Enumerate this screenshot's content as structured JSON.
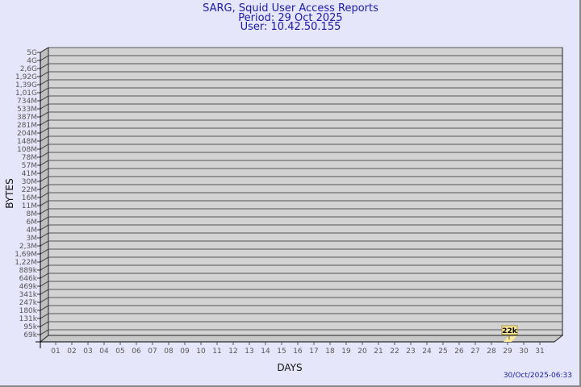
{
  "header": {
    "title": "SARG, Squid User Access Reports",
    "period": "Period: 29 Oct 2025",
    "user": "User: 10.42.50.155"
  },
  "footer": {
    "timestamp": "30/Oct/2025-06:33"
  },
  "chart_data": {
    "type": "bar",
    "xlabel": "DAYS",
    "ylabel": "BYTES",
    "y_scale": "log",
    "y_tick_labels": [
      "5G",
      "4G",
      "2,6G",
      "1,92G",
      "1,39G",
      "1,01G",
      "734M",
      "533M",
      "387M",
      "281M",
      "204M",
      "148M",
      "108M",
      "78M",
      "57M",
      "41M",
      "30M",
      "22M",
      "16M",
      "11M",
      "8M",
      "6M",
      "4M",
      "3M",
      "2,3M",
      "1,69M",
      "1,22M",
      "889k",
      "646k",
      "469k",
      "341k",
      "247k",
      "180k",
      "131k",
      "95k",
      "69k"
    ],
    "categories": [
      "01",
      "02",
      "03",
      "04",
      "05",
      "06",
      "07",
      "08",
      "09",
      "10",
      "11",
      "12",
      "13",
      "14",
      "15",
      "16",
      "17",
      "18",
      "19",
      "20",
      "21",
      "22",
      "23",
      "24",
      "25",
      "26",
      "27",
      "28",
      "29",
      "30",
      "31"
    ],
    "series": [
      {
        "points": [
          {
            "x": "29",
            "y": 22000,
            "label": "22k"
          }
        ]
      }
    ],
    "grid": true,
    "colors": {
      "background": "#e6e6fa",
      "plot": "#d3d3d3",
      "bar": "#ffe99a",
      "title": "#1a1aa6"
    }
  }
}
